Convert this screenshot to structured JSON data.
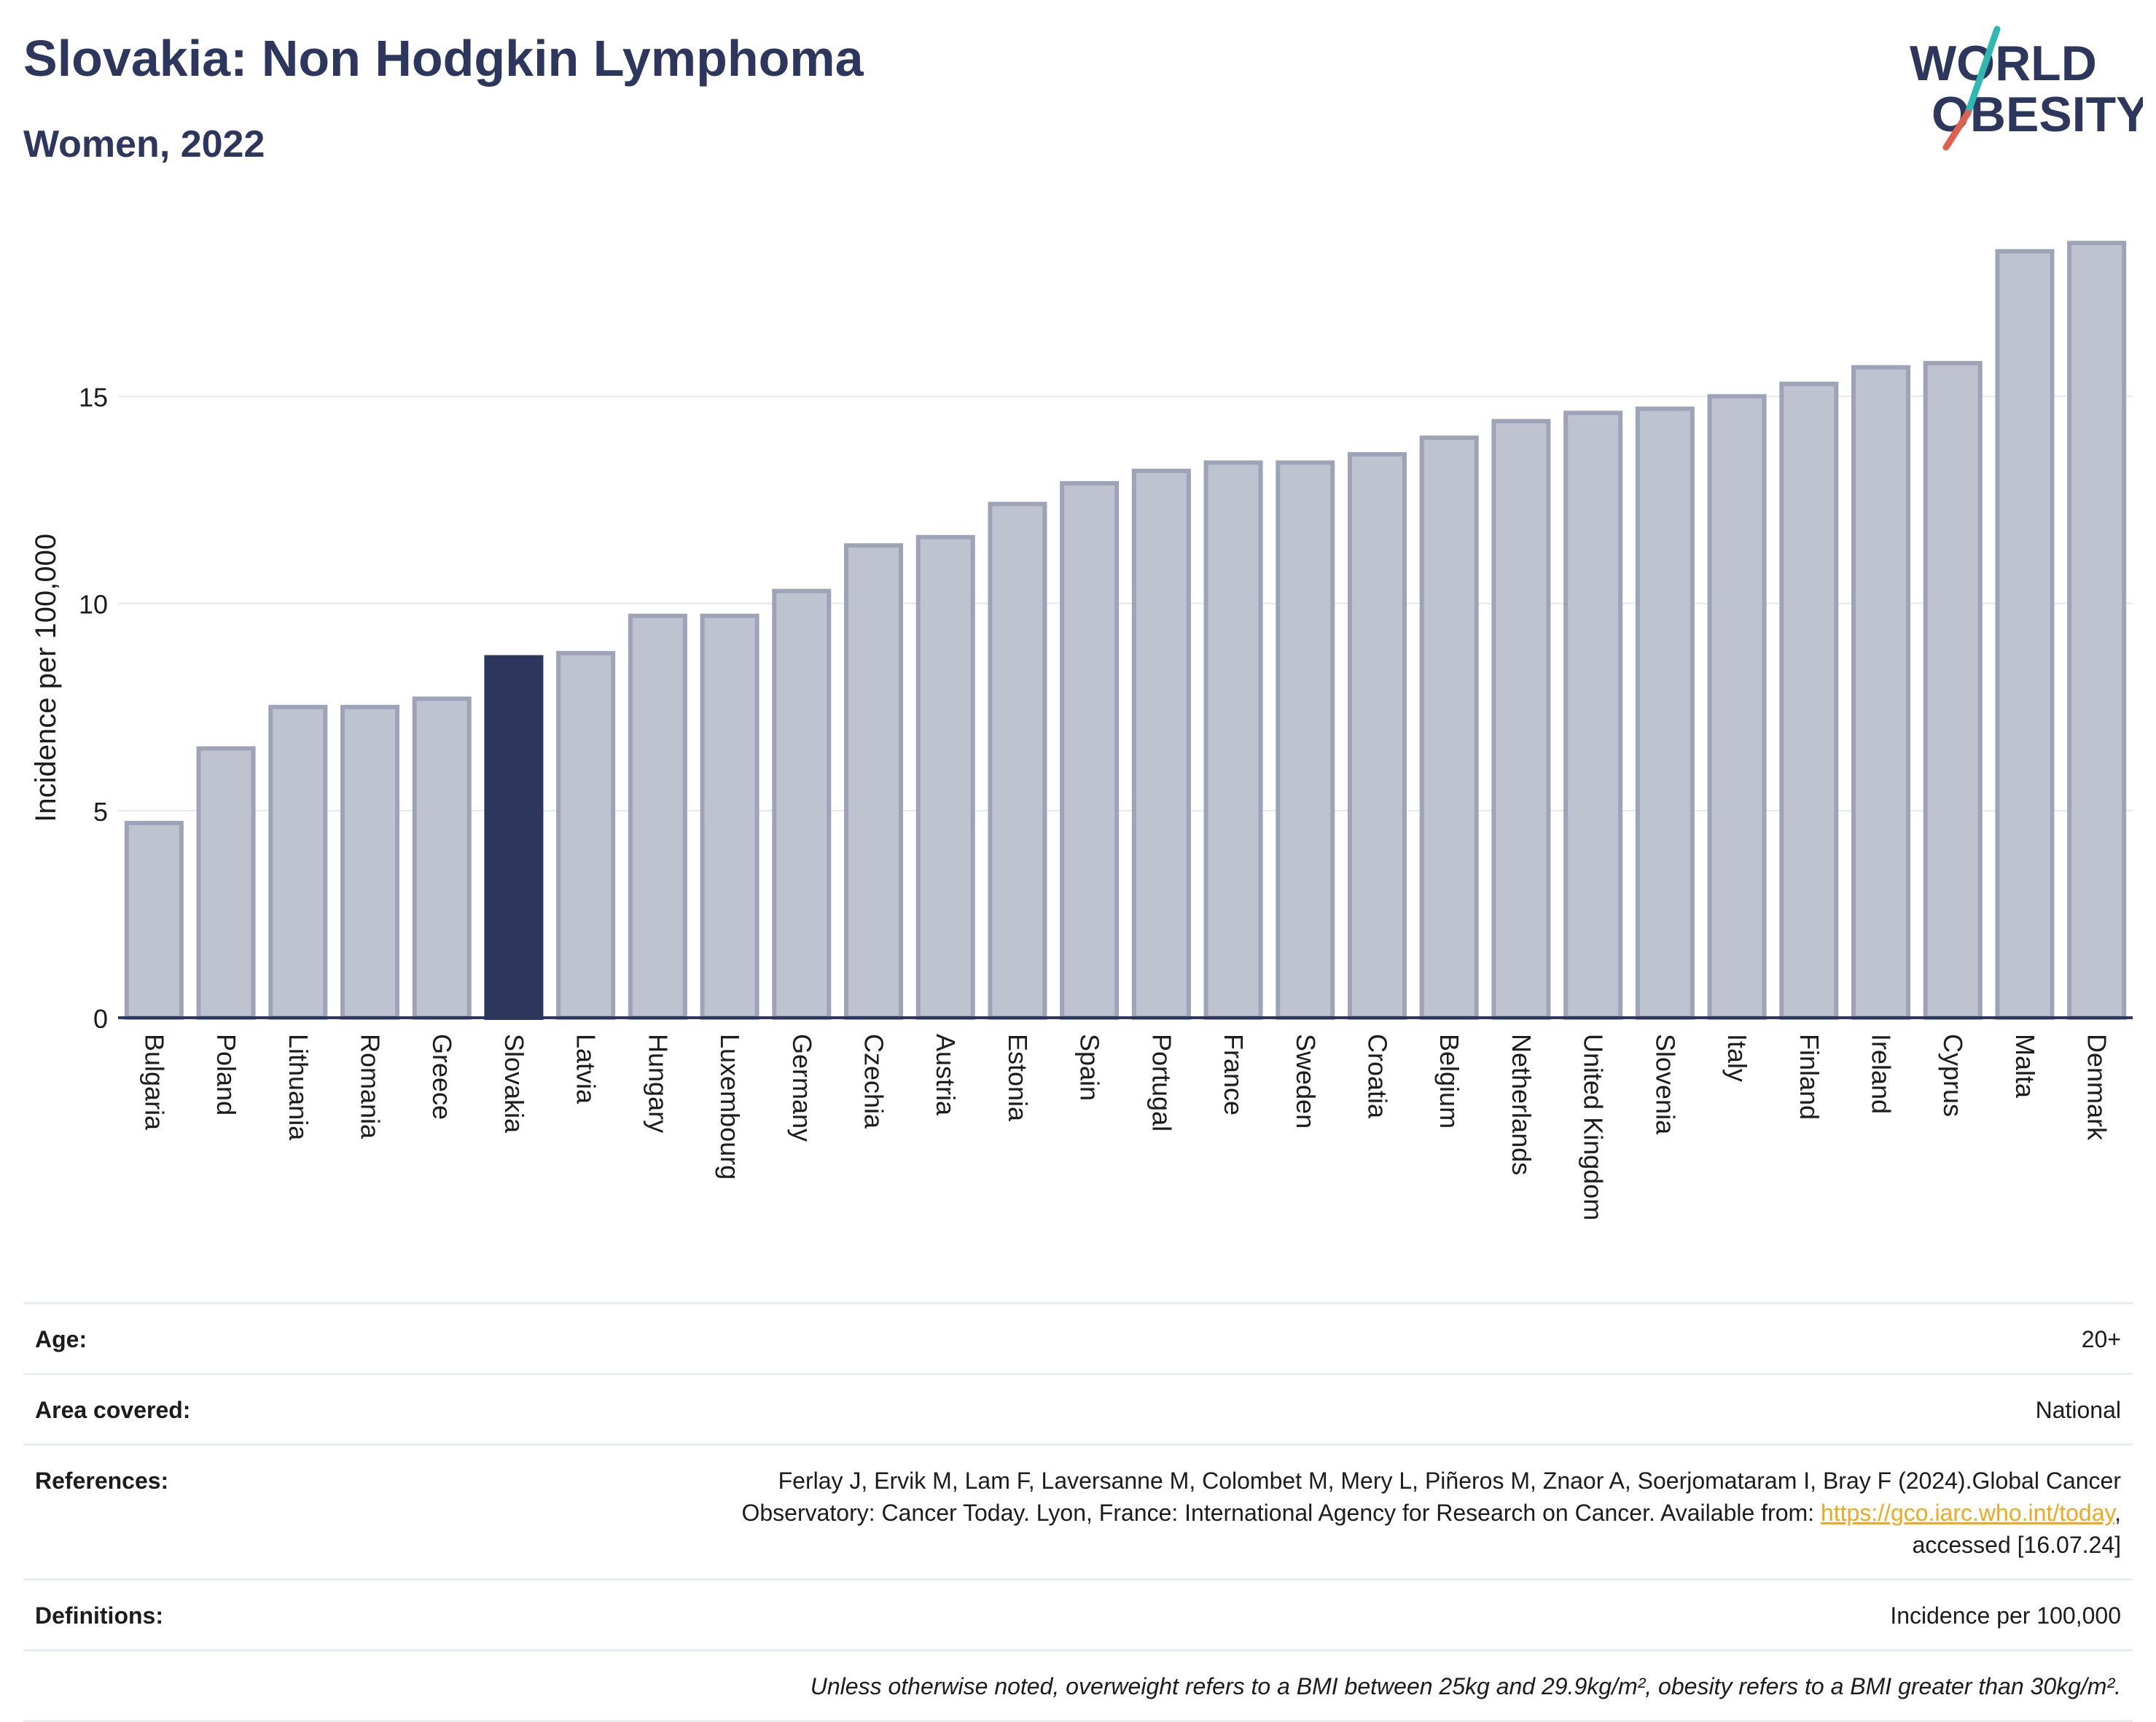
{
  "header": {
    "title": "Slovakia: Non Hodgkin Lymphoma",
    "subtitle": "Women, 2022"
  },
  "logo": {
    "line1": "WORLD",
    "line2": "OBESITY",
    "colors": {
      "text": "#2d375e",
      "slash_teal": "#2fb8b0",
      "slash_red": "#e0604f"
    }
  },
  "colors": {
    "bar_fill": "#bfc2cf",
    "bar_stroke": "#9ea3b8",
    "highlight_fill": "#2d375e",
    "axis_text": "#1c1c1c",
    "grid": "#e6e8ef",
    "link": "#f0a820"
  },
  "chart_data": {
    "type": "bar",
    "title": "Slovakia: Non Hodgkin Lymphoma",
    "subtitle": "Women, 2022",
    "xlabel": "",
    "ylabel": "Incidence per 100,000",
    "ylim": [
      0,
      19
    ],
    "yticks": [
      0,
      5,
      10,
      15
    ],
    "grid": true,
    "highlight": "Slovakia",
    "categories": [
      "Bulgaria",
      "Poland",
      "Lithuania",
      "Romania",
      "Greece",
      "Slovakia",
      "Latvia",
      "Hungary",
      "Luxembourg",
      "Germany",
      "Czechia",
      "Austria",
      "Estonia",
      "Spain",
      "Portugal",
      "France",
      "Sweden",
      "Croatia",
      "Belgium",
      "Netherlands",
      "United Kingdom",
      "Slovenia",
      "Italy",
      "Finland",
      "Ireland",
      "Cyprus",
      "Malta",
      "Denmark"
    ],
    "values": [
      4.7,
      6.5,
      7.5,
      7.5,
      7.7,
      8.7,
      8.8,
      9.7,
      9.7,
      10.3,
      11.4,
      11.6,
      12.4,
      12.9,
      13.2,
      13.4,
      13.4,
      13.6,
      14.0,
      14.4,
      14.6,
      14.7,
      15.0,
      15.3,
      15.7,
      15.8,
      18.5,
      18.7
    ]
  },
  "info": {
    "age": {
      "label": "Age:",
      "value": "20+"
    },
    "area": {
      "label": "Area covered:",
      "value": "National"
    },
    "references": {
      "label": "References:",
      "line1": "Ferlay J, Ervik M, Lam F, Laversanne M, Colombet M, Mery L, Piñeros M, Znaor A, Soerjomataram I, Bray F (2024).Global Cancer",
      "line2_pre": "Observatory: Cancer Today. Lyon, France: International Agency for Research on Cancer. Available from: ",
      "link": "https://gco.iarc.who.int/today",
      "line2_post": ",",
      "line3": "accessed [16.07.24]"
    },
    "definitions": {
      "label": "Definitions:",
      "value": "Incidence per 100,000"
    },
    "note": "Unless otherwise noted, overweight refers to a BMI between 25kg and 29.9kg/m², obesity refers to a BMI greater than 30kg/m²."
  }
}
